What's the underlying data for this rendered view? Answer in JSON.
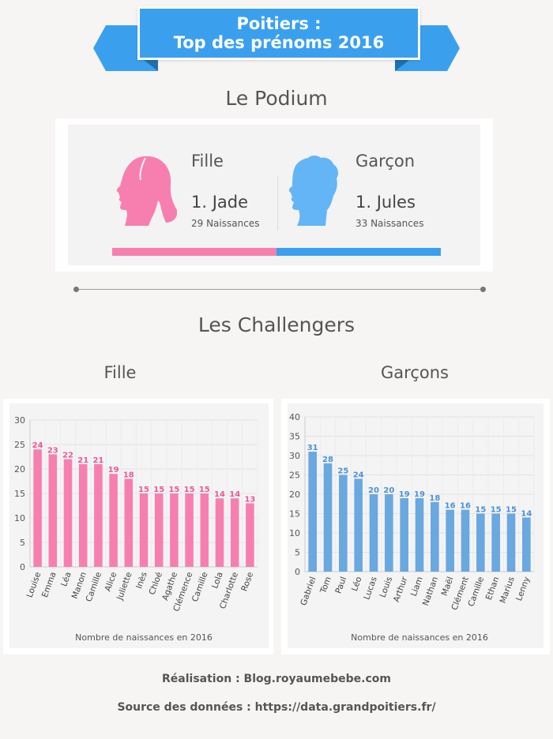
{
  "header": {
    "title_line1": "Poitiers :",
    "title_line2": "Top des prénoms 2016",
    "accent_color": "#3aa0ee"
  },
  "podium": {
    "heading": "Le Podium",
    "girl": {
      "label": "Fille",
      "name": "1. Jade",
      "count": "29 Naissances",
      "icon": "girl-head-icon",
      "color": "#f77fb0"
    },
    "boy": {
      "label": "Garçon",
      "name": "1. Jules",
      "count": "33 Naissances",
      "icon": "boy-head-icon",
      "color": "#64b5f6"
    }
  },
  "challengers": {
    "heading": "Les Challengers",
    "girls_heading": "Fille",
    "boys_heading": "Garçons"
  },
  "chart_data": [
    {
      "type": "bar",
      "categories": [
        "Louise",
        "Emma",
        "Léa",
        "Manon",
        "Camille",
        "Alice",
        "Juliette",
        "Inès",
        "Chloé",
        "Agathe",
        "Clémence",
        "Camille",
        "Lola",
        "Charlotte",
        "Rose"
      ],
      "values": [
        24,
        23,
        22,
        21,
        21,
        19,
        18,
        15,
        15,
        15,
        15,
        15,
        14,
        14,
        13
      ],
      "xlabel": "Nombre de naissances en 2016",
      "ylim": [
        0,
        30
      ],
      "yticks": [
        0,
        5,
        10,
        15,
        20,
        25,
        30
      ],
      "grid": true,
      "data_labels": true,
      "color": "#f77fb0",
      "label_color": "#e85a97"
    },
    {
      "type": "bar",
      "categories": [
        "Gabriel",
        "Tom",
        "Paul",
        "Léo",
        "Lucas",
        "Louis",
        "Arthur",
        "Liam",
        "Nathan",
        "Maël",
        "Clément",
        "Camille",
        "Ethan",
        "Marius",
        "Lenny"
      ],
      "values": [
        31,
        28,
        25,
        24,
        20,
        20,
        19,
        19,
        18,
        16,
        16,
        15,
        15,
        15,
        14
      ],
      "xlabel": "Nombre de naissances en 2016",
      "ylim": [
        0,
        40
      ],
      "yticks": [
        0,
        5,
        10,
        15,
        20,
        25,
        30,
        35,
        40
      ],
      "grid": true,
      "data_labels": true,
      "color": "#6aa8e0",
      "label_color": "#4a90d9"
    }
  ],
  "footer": {
    "credit": "Réalisation : Blog.royaumebebe.com",
    "source": "Source des données : https://data.grandpoitiers.fr/"
  }
}
